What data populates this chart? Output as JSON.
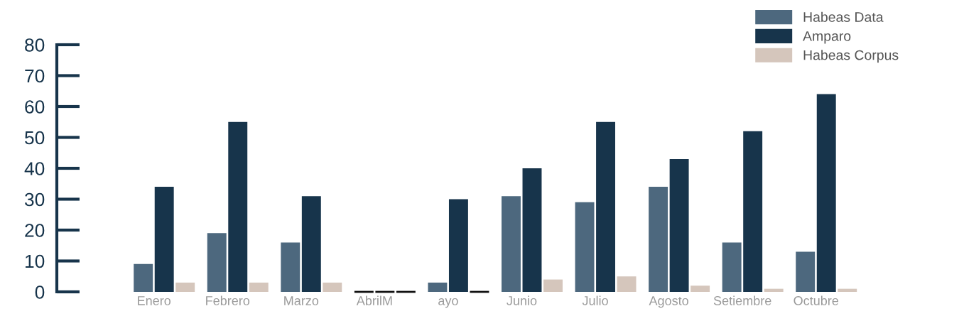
{
  "chart_data": {
    "type": "bar",
    "categories": [
      "Enero",
      "Febrero",
      "Marzo",
      "AbrilM",
      "ayo",
      "Junio",
      "Julio",
      "Agosto",
      "Setiembre",
      "Octubre"
    ],
    "series": [
      {
        "name": "Habeas Data",
        "color": "#4d687e",
        "values": [
          9,
          19,
          16,
          0,
          3,
          31,
          29,
          34,
          16,
          13
        ]
      },
      {
        "name": "Amparo",
        "color": "#17344b",
        "values": [
          34,
          55,
          31,
          0,
          30,
          40,
          55,
          43,
          52,
          64
        ]
      },
      {
        "name": "Habeas Corpus",
        "color": "#d5c6bc",
        "values": [
          3,
          3,
          3,
          0,
          0,
          4,
          5,
          2,
          1,
          1
        ]
      }
    ],
    "ylim": [
      0,
      80
    ],
    "yticks": [
      0,
      10,
      20,
      30,
      40,
      50,
      60,
      70,
      80
    ],
    "grid": false,
    "legend": "top right"
  }
}
